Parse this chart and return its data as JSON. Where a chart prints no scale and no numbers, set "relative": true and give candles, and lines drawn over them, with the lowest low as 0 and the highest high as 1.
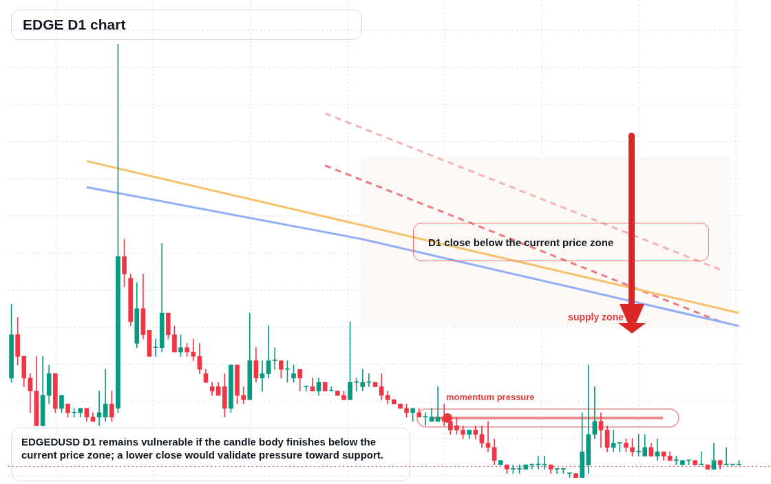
{
  "chart_data": {
    "type": "candlestick",
    "relative": true,
    "grid": true,
    "title": "EDGE D1 chart",
    "annotations": [
      "D1 close below the current price zone",
      "momentum pressure",
      "EDGEDUSD D1 remains vulnerable if the candle body finishes below the current price zone; a lower close would validate pressure toward support."
    ],
    "categories": [
      null,
      null,
      null,
      null,
      null,
      null,
      null,
      null,
      null,
      null,
      null,
      null,
      null,
      null,
      null,
      null,
      null,
      null,
      null,
      null,
      null,
      null,
      null,
      null,
      null,
      null,
      null,
      null,
      null,
      null,
      null,
      null,
      null,
      null,
      null,
      null,
      null,
      null,
      null,
      null,
      null,
      null,
      null,
      null,
      null,
      null,
      null,
      null,
      null,
      null,
      null,
      null,
      null,
      null,
      null,
      null,
      null,
      null,
      null,
      null,
      null,
      null,
      null,
      null,
      null,
      null,
      null,
      null,
      null,
      null,
      null,
      null,
      null,
      null,
      null,
      null,
      null,
      null,
      null,
      null,
      null,
      null,
      null,
      null,
      null,
      null,
      null,
      null,
      null,
      null,
      null,
      null,
      null,
      null,
      null,
      null,
      null,
      null,
      null,
      null,
      null,
      null,
      null,
      null,
      null,
      null,
      null,
      null,
      null,
      null,
      null,
      null,
      null,
      null,
      null,
      null,
      null
    ],
    "ohlc": [
      [
        0.23,
        0.4,
        0.22,
        0.33
      ],
      [
        0.33,
        0.37,
        0.26,
        0.28
      ],
      [
        0.28,
        0.28,
        0.21,
        0.23
      ],
      [
        0.23,
        0.24,
        0.15,
        0.2
      ],
      [
        0.2,
        0.28,
        0.12,
        0.12
      ],
      [
        0.12,
        0.28,
        0.12,
        0.19
      ],
      [
        0.19,
        0.26,
        0.17,
        0.24
      ],
      [
        0.24,
        0.24,
        0.15,
        0.16
      ],
      [
        0.16,
        0.19,
        0.15,
        0.19
      ],
      [
        0.17,
        0.17,
        0.14,
        0.15
      ],
      [
        0.15,
        0.16,
        0.14,
        0.15
      ],
      [
        0.15,
        0.16,
        0.14,
        0.16
      ],
      [
        0.16,
        0.16,
        0.13,
        0.14
      ],
      [
        0.14,
        0.15,
        0.13,
        0.13
      ],
      [
        0.14,
        0.2,
        0.12,
        0.15
      ],
      [
        0.14,
        0.25,
        0.13,
        0.17
      ],
      [
        0.17,
        0.2,
        0.13,
        0.14
      ],
      [
        0.16,
        1,
        0.15,
        0.51
      ],
      [
        0.51,
        0.55,
        0.44,
        0.47
      ],
      [
        0.46,
        0.47,
        0.35,
        0.36
      ],
      [
        0.31,
        0.45,
        0.3,
        0.39
      ],
      [
        0.39,
        0.47,
        0.32,
        0.33
      ],
      [
        0.34,
        0.34,
        0.28,
        0.28
      ],
      [
        0.3,
        0.32,
        0.28,
        0.3
      ],
      [
        0.3,
        0.54,
        0.29,
        0.38
      ],
      [
        0.38,
        0.38,
        0.32,
        0.33
      ],
      [
        0.33,
        0.35,
        0.29,
        0.29
      ],
      [
        0.29,
        0.33,
        0.28,
        0.3
      ],
      [
        0.3,
        0.31,
        0.28,
        0.29
      ],
      [
        0.29,
        0.32,
        0.27,
        0.28
      ],
      [
        0.28,
        0.31,
        0.24,
        0.25
      ],
      [
        0.24,
        0.25,
        0.22,
        0.22
      ],
      [
        0.21,
        0.22,
        0.19,
        0.2
      ],
      [
        0.21,
        0.22,
        0.19,
        0.19
      ],
      [
        0.21,
        0.24,
        0.14,
        0.16
      ],
      [
        0.16,
        0.26,
        0.15,
        0.26
      ],
      [
        0.26,
        0.26,
        0.17,
        0.19
      ],
      [
        0.19,
        0.21,
        0.17,
        0.18
      ],
      [
        0.18,
        0.38,
        0.18,
        0.27
      ],
      [
        0.27,
        0.3,
        0.22,
        0.23
      ],
      [
        0.23,
        0.27,
        0.2,
        0.24
      ],
      [
        0.24,
        0.35,
        0.23,
        0.27
      ],
      [
        0.27,
        0.3,
        0.25,
        0.27
      ],
      [
        0.27,
        0.27,
        0.23,
        0.25
      ],
      [
        0.25,
        0.27,
        0.22,
        0.25
      ],
      [
        0.23,
        0.26,
        0.22,
        0.24
      ],
      [
        0.25,
        0.25,
        0.2,
        0.23
      ],
      [
        0.21,
        0.21,
        0.2,
        0.21
      ],
      [
        0.21,
        0.23,
        0.2,
        0.2
      ],
      [
        0.2,
        0.23,
        0.19,
        0.22
      ],
      [
        0.22,
        0.22,
        0.2,
        0.2
      ],
      [
        0.2,
        0.21,
        0.2,
        0.2
      ],
      [
        0.2,
        0.2,
        0.19,
        0.19
      ],
      [
        0.19,
        0.2,
        0.18,
        0.18
      ],
      [
        0.18,
        0.36,
        0.18,
        0.22
      ],
      [
        0.22,
        0.23,
        0.2,
        0.22
      ],
      [
        0.21,
        0.25,
        0.2,
        0.22
      ],
      [
        0.22,
        0.24,
        0.21,
        0.22
      ],
      [
        0.22,
        0.22,
        0.21,
        0.21
      ],
      [
        0.21,
        0.24,
        0.18,
        0.19
      ],
      [
        0.19,
        0.2,
        0.17,
        0.18
      ],
      [
        0.18,
        0.18,
        0.17,
        0.17
      ],
      [
        0.17,
        0.17,
        0.16,
        0.16
      ],
      [
        0.16,
        0.17,
        0.14,
        0.15
      ],
      [
        0.15,
        0.16,
        0.13,
        0.16
      ],
      [
        0.15,
        0.16,
        0.14,
        0.14
      ],
      [
        0.14,
        0.15,
        0.12,
        0.14
      ],
      [
        0.13,
        0.16,
        0.13,
        0.14
      ],
      [
        0.13,
        0.21,
        0.13,
        0.14
      ],
      [
        0.14,
        0.17,
        0.12,
        0.13
      ],
      [
        0.13,
        0.14,
        0.1,
        0.11
      ],
      [
        0.12,
        0.14,
        0.1,
        0.11
      ],
      [
        0.11,
        0.12,
        0.09,
        0.1
      ],
      [
        0.1,
        0.11,
        0.09,
        0.11
      ],
      [
        0.11,
        0.12,
        0.09,
        0.1
      ],
      [
        0.1,
        0.12,
        0.07,
        0.08
      ],
      [
        0.08,
        0.13,
        0.06,
        0.07
      ],
      [
        0.07,
        0.09,
        0.03,
        0.04
      ],
      [
        0.03,
        0.04,
        0.03,
        0.04
      ],
      [
        0.03,
        0.03,
        0.01,
        0.02
      ],
      [
        0.02,
        0.03,
        0.01,
        0.02
      ],
      [
        0.02,
        0.03,
        0.01,
        0.02
      ],
      [
        0.02,
        0.03,
        0.02,
        0.03
      ],
      [
        0.03,
        0.03,
        0.02,
        0.03
      ],
      [
        0.03,
        0.05,
        0.02,
        0.03
      ],
      [
        0.03,
        0.05,
        0.02,
        0.03
      ],
      [
        0.03,
        0.03,
        0.01,
        0.02
      ],
      [
        0.02,
        0.02,
        0.01,
        0.02
      ],
      [
        0.02,
        0.02,
        0.01,
        0.02
      ],
      [
        0.01,
        0.01,
        0,
        0.01
      ],
      [
        0.01,
        0.01,
        0,
        0
      ],
      [
        0,
        0.15,
        0,
        0.06
      ],
      [
        0.03,
        0.26,
        0.01,
        0.1
      ],
      [
        0.1,
        0.21,
        0.09,
        0.13
      ],
      [
        0.13,
        0.15,
        0.07,
        0.11
      ],
      [
        0.11,
        0.12,
        0.06,
        0.07
      ],
      [
        0.07,
        0.11,
        0.06,
        0.08
      ],
      [
        0.08,
        0.08,
        0.06,
        0.08
      ],
      [
        0.08,
        0.09,
        0.06,
        0.07
      ],
      [
        0.07,
        0.09,
        0.05,
        0.06
      ],
      [
        0.06,
        0.1,
        0.05,
        0.06
      ],
      [
        0.05,
        0.1,
        0.05,
        0.07
      ],
      [
        0.07,
        0.08,
        0.05,
        0.05
      ],
      [
        0.05,
        0.09,
        0.04,
        0.06
      ],
      [
        0.06,
        0.06,
        0.04,
        0.05
      ],
      [
        0.05,
        0.06,
        0.04,
        0.04
      ],
      [
        0.04,
        0.05,
        0.03,
        0.04
      ],
      [
        0.03,
        0.04,
        0.03,
        0.04
      ],
      [
        0.04,
        0.04,
        0.03,
        0.04
      ],
      [
        0.04,
        0.04,
        0.03,
        0.03
      ],
      [
        0.03,
        0.06,
        0.03,
        0.03
      ],
      [
        0.03,
        0.03,
        0.02,
        0.02
      ],
      [
        0.02,
        0.08,
        0.02,
        0.04
      ],
      [
        0.04,
        0.04,
        0.02,
        0.03
      ],
      [
        0.03,
        0.07,
        0.03,
        0.03
      ],
      [
        0.03,
        0.03,
        0.03,
        0.03
      ],
      [
        0.03,
        0.04,
        0.03,
        0.03
      ]
    ],
    "series": [
      {
        "type": "line",
        "color": "#f7c16b",
        "line_style": "solid",
        "values": [
          null,
          null,
          null,
          null,
          null,
          null,
          null,
          null,
          null,
          null,
          null,
          null,
          0.73,
          null,
          null,
          null,
          null,
          null,
          null,
          null,
          null,
          null,
          null,
          null,
          null,
          null,
          null,
          null,
          null,
          null,
          null,
          null,
          null,
          null,
          null,
          null,
          null,
          null,
          null,
          null,
          null,
          null,
          null,
          null,
          null,
          null,
          null,
          null,
          null,
          null,
          null,
          null,
          null,
          null,
          null,
          null,
          null,
          null,
          null,
          null,
          null,
          null,
          null,
          null,
          null,
          null,
          null,
          null,
          null,
          null,
          null,
          null,
          null,
          null,
          null,
          null,
          null,
          null,
          null,
          null,
          null,
          null,
          null,
          null,
          null,
          null,
          null,
          null,
          null,
          null,
          null,
          null,
          null,
          null,
          null,
          null,
          null,
          null,
          null,
          null,
          null,
          null,
          null,
          null,
          null,
          null,
          null,
          null,
          null,
          null,
          null,
          null,
          null,
          null,
          null,
          null,
          0.38
        ]
      },
      {
        "type": "line",
        "color": "#91aef5",
        "line_style": "solid",
        "values": [
          null,
          null,
          null,
          null,
          null,
          null,
          null,
          null,
          null,
          null,
          null,
          null,
          0.67,
          null,
          null,
          null,
          null,
          null,
          null,
          null,
          null,
          null,
          null,
          null,
          null,
          null,
          null,
          null,
          null,
          null,
          null,
          null,
          null,
          null,
          null,
          null,
          null,
          null,
          null,
          null,
          null,
          null,
          null,
          null,
          null,
          null,
          null,
          null,
          null,
          null,
          null,
          null,
          null,
          null,
          null,
          null,
          0.55,
          null,
          null,
          null,
          null,
          null,
          null,
          null,
          null,
          null,
          null,
          null,
          null,
          null,
          null,
          null,
          null,
          null,
          null,
          null,
          null,
          null,
          null,
          null,
          null,
          null,
          null,
          null,
          null,
          null,
          null,
          null,
          null,
          null,
          null,
          null,
          null,
          null,
          null,
          null,
          null,
          null,
          null,
          null,
          null,
          null,
          null,
          null,
          null,
          null,
          null,
          null,
          null,
          null,
          null,
          null,
          null,
          null,
          null,
          null,
          0.35
        ]
      },
      {
        "type": "line",
        "color": "#ec7b7f",
        "line_style": "dashed",
        "values": [
          null,
          null,
          null,
          null,
          null,
          null,
          null,
          null,
          null,
          null,
          null,
          null,
          null,
          null,
          null,
          null,
          null,
          null,
          null,
          null,
          null,
          null,
          null,
          null,
          null,
          null,
          null,
          null,
          null,
          null,
          null,
          null,
          null,
          null,
          null,
          null,
          null,
          null,
          null,
          null,
          null,
          null,
          null,
          null,
          null,
          null,
          null,
          null,
          null,
          null,
          0.72,
          null,
          null,
          null,
          null,
          null,
          null,
          null,
          null,
          null,
          null,
          null,
          null,
          null,
          null,
          null,
          null,
          null,
          null,
          null,
          null,
          null,
          null,
          null,
          null,
          null,
          null,
          null,
          null,
          null,
          null,
          null,
          null,
          null,
          null,
          null,
          null,
          null,
          null,
          null,
          null,
          null,
          null,
          null,
          null,
          null,
          null,
          null,
          null,
          null,
          null,
          null,
          null,
          null,
          null,
          null,
          null,
          null,
          null,
          null,
          null,
          null,
          null,
          0.36,
          null,
          null,
          null
        ]
      },
      {
        "type": "line",
        "color": "#f4b3b5",
        "line_style": "dashed",
        "values": [
          null,
          null,
          null,
          null,
          null,
          null,
          null,
          null,
          null,
          null,
          null,
          null,
          null,
          null,
          null,
          null,
          null,
          null,
          null,
          null,
          null,
          null,
          null,
          null,
          null,
          null,
          null,
          null,
          null,
          null,
          null,
          null,
          null,
          null,
          null,
          null,
          null,
          null,
          null,
          null,
          null,
          null,
          null,
          null,
          null,
          null,
          null,
          null,
          null,
          null,
          0.84,
          null,
          null,
          null,
          null,
          null,
          null,
          null,
          null,
          null,
          null,
          null,
          null,
          null,
          null,
          null,
          null,
          null,
          null,
          null,
          null,
          null,
          null,
          null,
          null,
          null,
          null,
          null,
          null,
          null,
          null,
          null,
          null,
          null,
          null,
          null,
          null,
          null,
          null,
          null,
          null,
          null,
          null,
          null,
          null,
          null,
          null,
          null,
          null,
          null,
          null,
          null,
          null,
          null,
          null,
          null,
          null,
          null,
          null,
          null,
          null,
          null,
          null,
          0.48,
          null,
          null,
          null
        ]
      }
    ],
    "bands": [
      {
        "axis": "y",
        "from": 0.35,
        "to": 0.74,
        "label": "supply zone",
        "color": "#fcf8f5"
      }
    ],
    "ref_lines": [
      {
        "axis": "y",
        "value": 0.026,
        "color": "#f23645",
        "line_style": "dotted"
      }
    ]
  }
}
